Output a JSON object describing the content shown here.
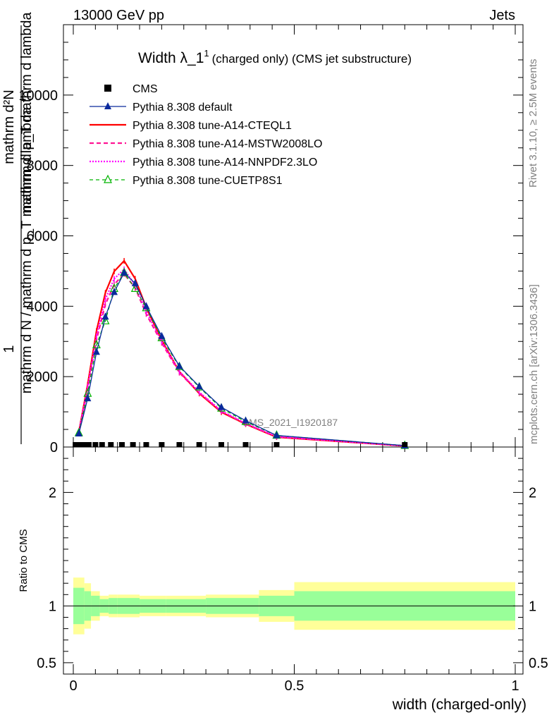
{
  "header": {
    "left": "13000 GeV pp",
    "right": "Jets"
  },
  "side": {
    "rivet": "Rivet 3.1.10, ≥ 2.5M events",
    "mcplots": "mcplots.cern.ch [arXiv:1306.3436]"
  },
  "colors": {
    "cms": "#000000",
    "default": "#0a2a9c",
    "cteql1": "#ff0000",
    "mstw": "#ff1493",
    "nnpdf": "#ff00ff",
    "cuetp": "#00b400",
    "band_inner": "#99ff99",
    "band_outer": "#ffff99"
  },
  "chart_data": {
    "type": "line",
    "title": "Width λ_1",
    "title_sup": "1",
    "subtitle": "(charged only) (CMS jet substructure)",
    "xlabel": "width (charged-only)",
    "ylabel_top": "1",
    "ylabel_main": "mathrm d N / mathrm d p_T mathrm d lambda",
    "ylabel_num": "mathrm d²N",
    "ylabel_mid": "mathrm d p_T mathrm d lambda",
    "ratio_ylabel": "Ratio to CMS",
    "watermark": "CMS_2021_I1920187",
    "xlim": [
      0,
      1
    ],
    "ylim": [
      0,
      12000
    ],
    "ratio_ylim": [
      0.4,
      2.4
    ],
    "x_ticks": [
      "0",
      "0.5",
      "1"
    ],
    "y_ticks": [
      "0",
      "2000",
      "4000",
      "6000",
      "8000",
      "10000"
    ],
    "ratio_ticks": [
      "0.5",
      "1",
      "2"
    ],
    "x": [
      0.0125,
      0.0325,
      0.0525,
      0.0725,
      0.0925,
      0.115,
      0.14,
      0.165,
      0.2,
      0.24,
      0.285,
      0.335,
      0.39,
      0.46,
      0.75
    ],
    "cms_markers": [
      0.005,
      0.015,
      0.025,
      0.035,
      0.05,
      0.065,
      0.085,
      0.11,
      0.135,
      0.165,
      0.2,
      0.24,
      0.285,
      0.335,
      0.39,
      0.46,
      0.75
    ],
    "series": [
      {
        "name": "CMS",
        "values": [
          0,
          0,
          0,
          0,
          0,
          0,
          0,
          0,
          0,
          0,
          0,
          0,
          0,
          0,
          0
        ]
      },
      {
        "name": "Pythia 8.308 default",
        "values": [
          380,
          1380,
          2700,
          3700,
          4400,
          4950,
          4650,
          4000,
          3150,
          2300,
          1720,
          1130,
          750,
          330,
          40
        ]
      },
      {
        "name": "Pythia 8.308 tune-A14-CTEQL1",
        "values": [
          430,
          1780,
          3300,
          4380,
          4990,
          5290,
          4780,
          3960,
          3040,
          2140,
          1520,
          990,
          650,
          280,
          30
        ]
      },
      {
        "name": "Pythia 8.308 tune-A14-MSTW2008LO",
        "values": [
          410,
          1650,
          3050,
          4050,
          4620,
          4920,
          4520,
          3780,
          2960,
          2110,
          1540,
          1010,
          660,
          290,
          32
        ]
      },
      {
        "name": "Pythia 8.308 tune-A14-NNPDF2.3LO",
        "values": [
          420,
          1700,
          3150,
          4200,
          4780,
          5050,
          4600,
          3850,
          3000,
          2150,
          1560,
          1030,
          670,
          295,
          33
        ]
      },
      {
        "name": "Pythia 8.308 tune-CUETP8S1",
        "values": [
          400,
          1520,
          2900,
          3580,
          4500,
          4950,
          4500,
          3950,
          3100,
          2280,
          1700,
          1100,
          720,
          330,
          40
        ]
      }
    ],
    "ratio_band": {
      "x": [
        0,
        0.025,
        0.04,
        0.06,
        0.08,
        0.1,
        0.15,
        0.21,
        0.3,
        0.42,
        0.5,
        1.0
      ],
      "inner": [
        0.16,
        0.13,
        0.09,
        0.06,
        0.07,
        0.07,
        0.06,
        0.06,
        0.07,
        0.09,
        0.13,
        0.13
      ],
      "outer": [
        0.25,
        0.2,
        0.13,
        0.09,
        0.1,
        0.1,
        0.09,
        0.09,
        0.1,
        0.14,
        0.21,
        0.21
      ]
    },
    "legend_position": "top-left",
    "grid": false
  }
}
